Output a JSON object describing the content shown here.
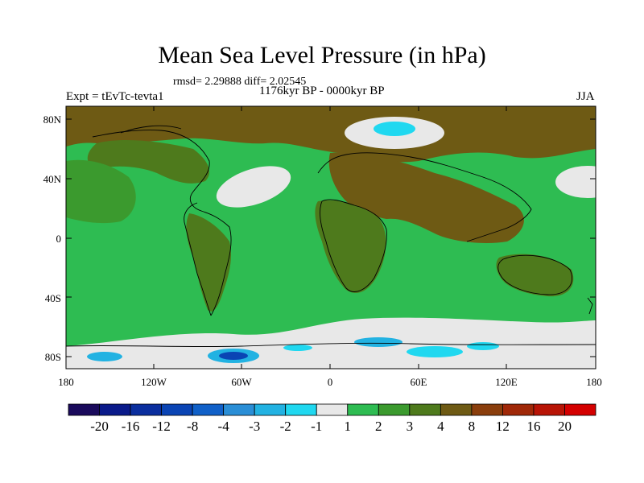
{
  "title": "Mean Sea Level Pressure (in hPa)",
  "stats": "rmsd= 2.29888 diff= 2.02545",
  "expt": "Expt = tEvTc-tevta1",
  "period": "1176kyr BP - 0000kyr BP",
  "season": "JJA",
  "lat_labels": [
    "80N",
    "40N",
    "0",
    "40S",
    "80S"
  ],
  "lon_labels": [
    "180",
    "120W",
    "60W",
    "0",
    "60E",
    "120E",
    "180"
  ],
  "colorbar": {
    "labels": [
      "-20",
      "-16",
      "-12",
      "-8",
      "-4",
      "-3",
      "-2",
      "-1",
      "1",
      "2",
      "3",
      "4",
      "8",
      "12",
      "16",
      "20"
    ],
    "colors": [
      "#1a0a5c",
      "#0a1a8a",
      "#0a2e9e",
      "#0a44b4",
      "#1060c8",
      "#2a8ed6",
      "#22b2e2",
      "#20d8f0",
      "#e8e8e8",
      "#2ebc52",
      "#3b9a2e",
      "#4e7a1c",
      "#6e5a14",
      "#8a3e0c",
      "#a02808",
      "#b81406",
      "#d40000"
    ]
  }
}
